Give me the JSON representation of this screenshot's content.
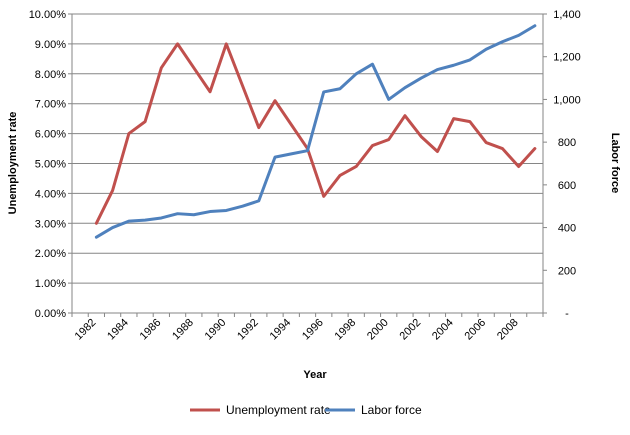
{
  "chart_data": {
    "type": "line",
    "xlabel": "Year",
    "ylabel_left": "Unemployment rate",
    "ylabel_right": "Labor force",
    "x": [
      1982,
      1983,
      1984,
      1985,
      1986,
      1987,
      1988,
      1989,
      1990,
      1991,
      1992,
      1993,
      1994,
      1995,
      1996,
      1997,
      1998,
      1999,
      2000,
      2001,
      2002,
      2003,
      2004,
      2005,
      2006,
      2007,
      2008,
      2009
    ],
    "x_tick_labels": [
      "1982",
      "1984",
      "1986",
      "1988",
      "1990",
      "1992",
      "1994",
      "1996",
      "1998",
      "2000",
      "2002",
      "2004",
      "2006",
      "2008"
    ],
    "y_left_ticks": [
      "0.00%",
      "1.00%",
      "2.00%",
      "3.00%",
      "4.00%",
      "5.00%",
      "6.00%",
      "7.00%",
      "8.00%",
      "9.00%",
      "10.00%"
    ],
    "y_right_ticks": [
      "-",
      "200",
      "400",
      "600",
      "800",
      "1,000",
      "1,200",
      "1,400"
    ],
    "ylim_left": [
      0,
      10
    ],
    "ylim_right": [
      0,
      1400
    ],
    "grid": "horizontal",
    "legend_position": "bottom",
    "series": [
      {
        "name": "Unemployment rate",
        "axis": "left",
        "color": "#C0504D",
        "values": [
          3.0,
          4.1,
          6.0,
          6.4,
          8.2,
          9.0,
          8.2,
          7.4,
          9.0,
          7.6,
          6.2,
          7.1,
          6.3,
          5.5,
          3.9,
          4.6,
          4.9,
          5.6,
          5.8,
          6.6,
          5.9,
          5.4,
          6.5,
          6.4,
          5.7,
          5.5,
          4.9,
          5.5
        ]
      },
      {
        "name": "Labor force",
        "axis": "right",
        "color": "#4F81BD",
        "values": [
          355,
          400,
          430,
          435,
          445,
          465,
          460,
          475,
          480,
          500,
          525,
          730,
          745,
          760,
          1035,
          1050,
          1120,
          1165,
          1000,
          1055,
          1100,
          1140,
          1160,
          1185,
          1235,
          1270,
          1300,
          1345
        ]
      }
    ]
  }
}
